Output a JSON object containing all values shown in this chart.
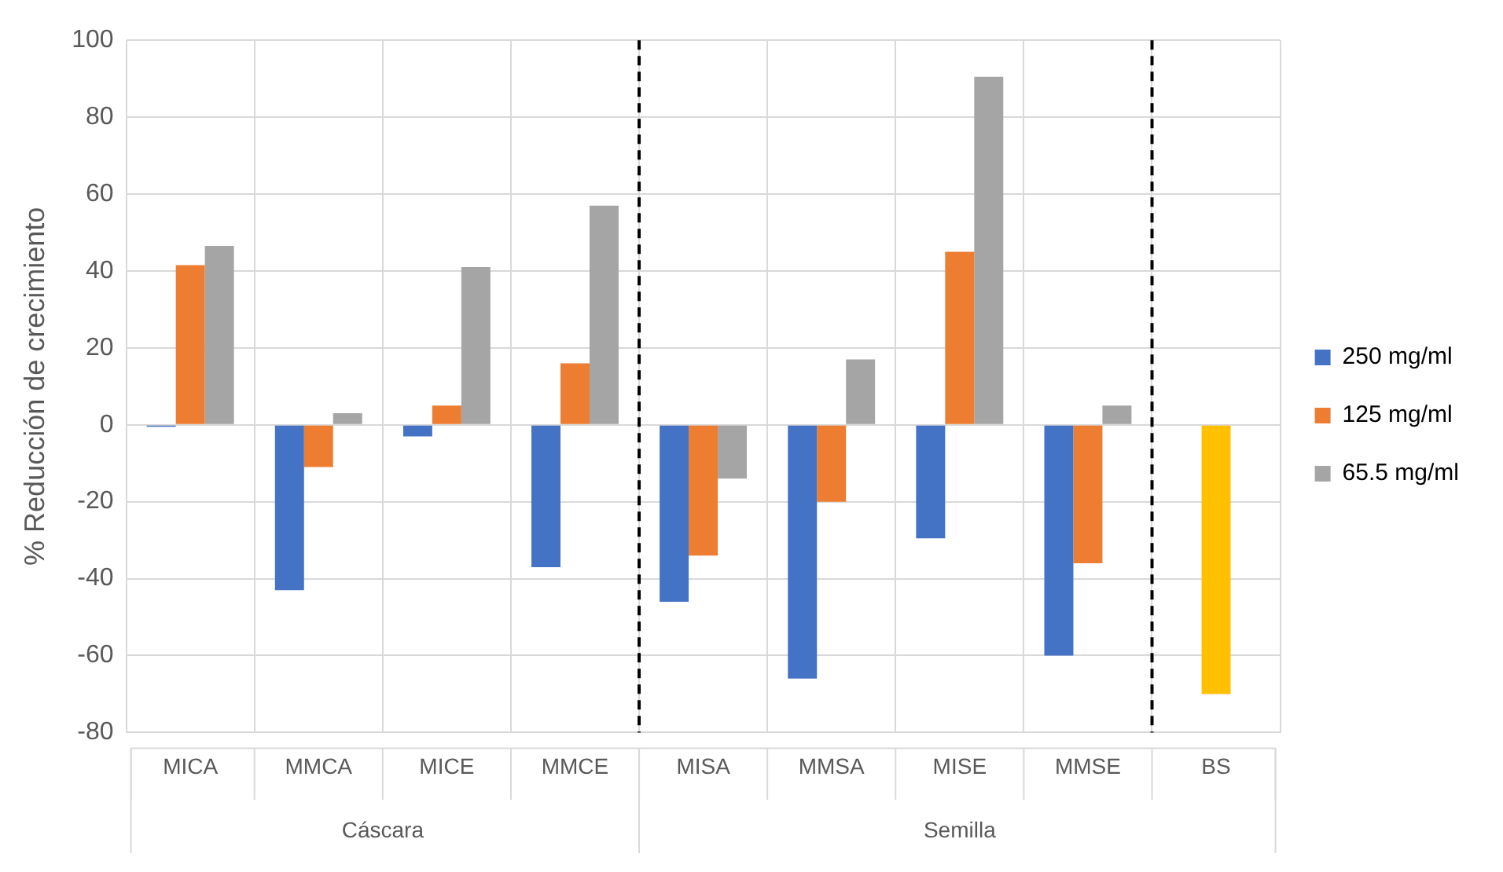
{
  "chart_data": {
    "type": "bar",
    "ylabel": "% Reducción de crecimiento",
    "categories": [
      "MICA",
      "MMCA",
      "MICE",
      "MMCE",
      "MISA",
      "MMSA",
      "MISE",
      "MMSE",
      "BS"
    ],
    "series": [
      {
        "name": "250 mg/ml",
        "color": "#4472c4",
        "values": [
          -0.5,
          -43,
          -3,
          -37,
          -46,
          -66,
          -29.5,
          -60,
          null
        ]
      },
      {
        "name": "125 mg/ml",
        "color": "#ed7d31",
        "colors": [
          "#ed7d31",
          "#ed7d31",
          "#ed7d31",
          "#ed7d31",
          "#ed7d31",
          "#ed7d31",
          "#ed7d31",
          "#ed7d31",
          "#ffc000"
        ],
        "values": [
          41.5,
          -11,
          5,
          16,
          -34,
          -20,
          45,
          -36,
          -70
        ]
      },
      {
        "name": "65.5 mg/ml",
        "color": "#a5a5a5",
        "values": [
          46.5,
          3,
          41,
          57,
          -14,
          17,
          90.5,
          5,
          null
        ]
      }
    ],
    "ylim": [
      -80,
      100
    ],
    "yticks": [
      -80,
      -60,
      -40,
      -20,
      0,
      20,
      40,
      60,
      80,
      100
    ],
    "grid": true,
    "legend": "right",
    "annotations": [
      "Cáscara",
      "Semilla"
    ]
  }
}
